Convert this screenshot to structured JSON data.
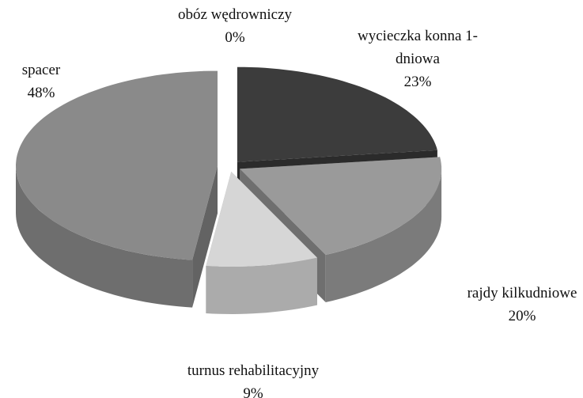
{
  "chart_data": {
    "type": "pie3d",
    "categories": [
      "obóz wędrowniczy",
      "wycieczka konna 1-dniowa",
      "rajdy kilkudniowe",
      "turnus rehabilitacyjny",
      "spacer"
    ],
    "values": [
      0,
      23,
      20,
      9,
      48
    ],
    "value_labels": [
      "0%",
      "23%",
      "20%",
      "9%",
      "48%"
    ],
    "colors": [
      "#5a5a5a",
      "#3c3c3c",
      "#9a9a9a",
      "#d6d6d6",
      "#8a8a8a"
    ]
  }
}
